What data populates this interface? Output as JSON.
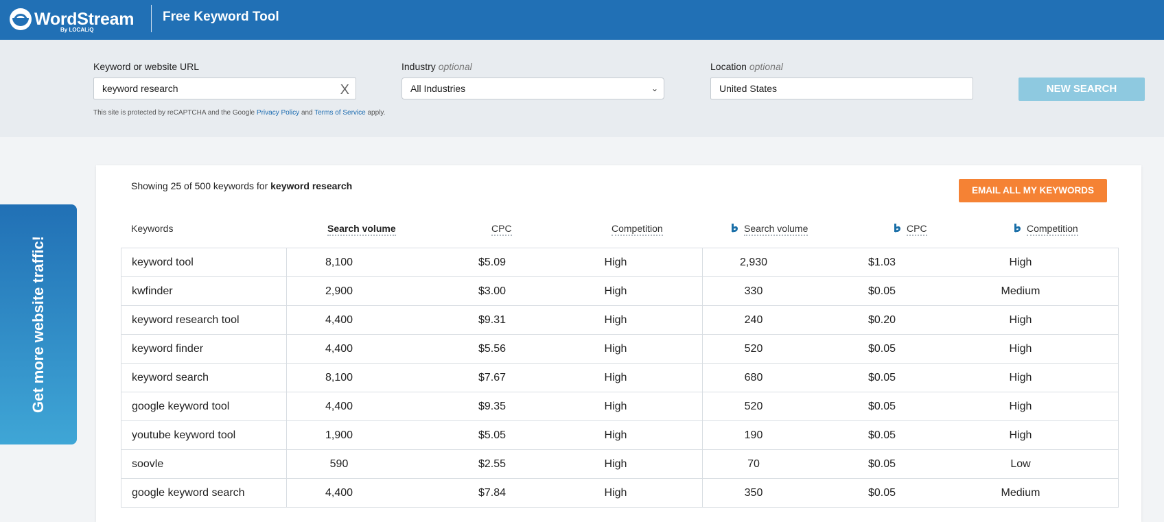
{
  "header": {
    "brand": "WordStream",
    "brand_sub": "By LOCALiQ",
    "title": "Free Keyword Tool"
  },
  "search": {
    "keyword_label": "Keyword or website URL",
    "keyword_value": "keyword research",
    "clear_glyph": "X",
    "industry_label": "Industry",
    "industry_optional": "optional",
    "industry_value": "All Industries",
    "location_label": "Location",
    "location_optional": "optional",
    "location_value": "United States",
    "new_search_label": "NEW SEARCH",
    "recaptcha_prefix": "This site is protected by reCAPTCHA and the Google",
    "privacy_link": "Privacy Policy",
    "recaptcha_and": "and",
    "terms_link": "Terms of Service",
    "recaptcha_suffix": "apply."
  },
  "side_tab": {
    "label": "Get more website traffic!"
  },
  "results": {
    "showing_prefix": "Showing 25 of 500 keywords for",
    "showing_query": "keyword research",
    "email_button": "EMAIL ALL MY KEYWORDS",
    "columns": {
      "keywords": "Keywords",
      "search_volume": "Search volume",
      "cpc": "CPC",
      "competition": "Competition",
      "bing_search_volume": "Search volume",
      "bing_cpc": "CPC",
      "bing_competition": "Competition"
    },
    "rows": [
      {
        "keyword": "keyword tool",
        "volume": "8,100",
        "cpc": "$5.09",
        "competition": "High",
        "bing_volume": "2,930",
        "bing_cpc": "$1.03",
        "bing_competition": "High"
      },
      {
        "keyword": "kwfinder",
        "volume": "2,900",
        "cpc": "$3.00",
        "competition": "High",
        "bing_volume": "330",
        "bing_cpc": "$0.05",
        "bing_competition": "Medium"
      },
      {
        "keyword": "keyword research tool",
        "volume": "4,400",
        "cpc": "$9.31",
        "competition": "High",
        "bing_volume": "240",
        "bing_cpc": "$0.20",
        "bing_competition": "High"
      },
      {
        "keyword": "keyword finder",
        "volume": "4,400",
        "cpc": "$5.56",
        "competition": "High",
        "bing_volume": "520",
        "bing_cpc": "$0.05",
        "bing_competition": "High"
      },
      {
        "keyword": "keyword search",
        "volume": "8,100",
        "cpc": "$7.67",
        "competition": "High",
        "bing_volume": "680",
        "bing_cpc": "$0.05",
        "bing_competition": "High"
      },
      {
        "keyword": "google keyword tool",
        "volume": "4,400",
        "cpc": "$9.35",
        "competition": "High",
        "bing_volume": "520",
        "bing_cpc": "$0.05",
        "bing_competition": "High"
      },
      {
        "keyword": "youtube keyword tool",
        "volume": "1,900",
        "cpc": "$5.05",
        "competition": "High",
        "bing_volume": "190",
        "bing_cpc": "$0.05",
        "bing_competition": "High"
      },
      {
        "keyword": "soovle",
        "volume": "590",
        "cpc": "$2.55",
        "competition": "High",
        "bing_volume": "70",
        "bing_cpc": "$0.05",
        "bing_competition": "Low"
      },
      {
        "keyword": "google keyword search",
        "volume": "4,400",
        "cpc": "$7.84",
        "competition": "High",
        "bing_volume": "350",
        "bing_cpc": "$0.05",
        "bing_competition": "Medium"
      }
    ]
  },
  "colors": {
    "header_bg": "#2170b5",
    "new_search_bg": "#8ec9e0",
    "email_button_bg": "#f58234",
    "bing_icon": "#1a6fa8"
  }
}
